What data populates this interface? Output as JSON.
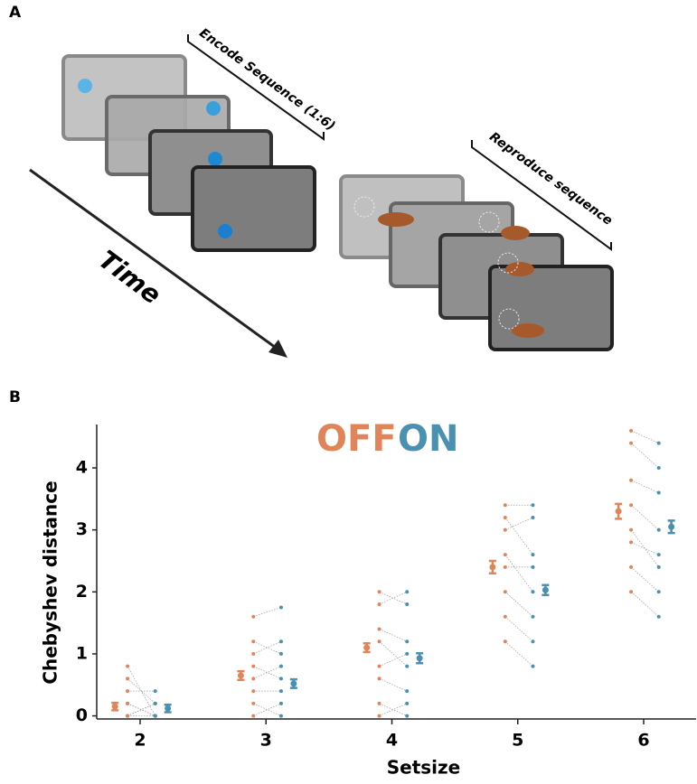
{
  "panel_a": {
    "label": "A",
    "encode": "Encode Sequence (1:6)",
    "reproduce": "Reproduce sequence",
    "time": "Time"
  },
  "panel_b_label": "B",
  "chart_data": {
    "type": "paired-dot",
    "x_label": "Setsize",
    "y_label": "Chebyshev distance",
    "categories": [
      "2",
      "3",
      "4",
      "5",
      "6"
    ],
    "ylim": [
      -0.05,
      4.7
    ],
    "yticks": [
      0,
      1,
      2,
      3,
      4
    ],
    "series": [
      {
        "name": "OFF",
        "color": "#e0855a",
        "values": [
          0.15,
          0.65,
          1.1,
          2.4,
          3.3
        ],
        "errors": [
          0.06,
          0.07,
          0.07,
          0.1,
          0.12
        ],
        "subjects": [
          [
            0,
            0,
            0.2,
            0.2,
            0.4,
            0.6,
            0.8,
            0
          ],
          [
            0,
            0.2,
            0.4,
            0.6,
            0.8,
            1.0,
            1.2,
            1.6
          ],
          [
            0,
            0.2,
            0.6,
            0.8,
            1.2,
            1.4,
            1.8,
            2.0
          ],
          [
            1.2,
            1.6,
            2.0,
            2.4,
            2.6,
            3.0,
            3.2,
            3.4
          ],
          [
            2.0,
            2.4,
            2.8,
            3.0,
            3.4,
            3.8,
            4.4,
            4.6
          ]
        ]
      },
      {
        "name": "ON",
        "color": "#4a90b0",
        "values": [
          0.12,
          0.52,
          0.93,
          2.03,
          3.05
        ],
        "errors": [
          0.06,
          0.07,
          0.08,
          0.08,
          0.1
        ],
        "subjects": [
          [
            0,
            0.2,
            0,
            0,
            0.4,
            0.2,
            0,
            0.2
          ],
          [
            0.2,
            0,
            0.4,
            0.8,
            0.6,
            1.2,
            1.0,
            1.75
          ],
          [
            0.2,
            0,
            0.4,
            1.0,
            0.8,
            1.2,
            2.0,
            1.8
          ],
          [
            0.8,
            1.2,
            1.6,
            2.4,
            2.0,
            3.2,
            2.6,
            3.4
          ],
          [
            1.6,
            2.0,
            2.6,
            2.4,
            3.0,
            3.6,
            4.0,
            4.4
          ]
        ]
      }
    ]
  }
}
